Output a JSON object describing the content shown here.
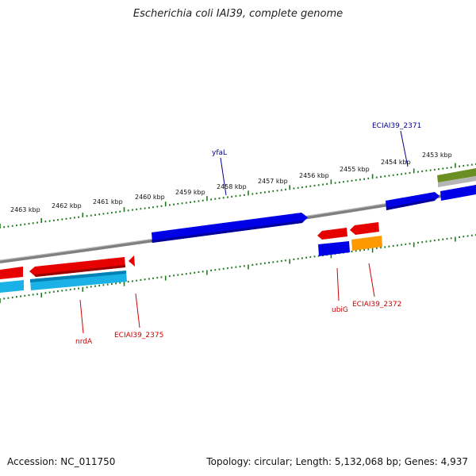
{
  "title": "Escherichia coli IAI39, complete genome",
  "footer": {
    "accession": "Accession: NC_011750",
    "summary": "Topology: circular; Length: 5,132,068 bp; Genes: 4,937"
  },
  "colors": {
    "background": "#ffffff",
    "backbone": "#808080",
    "tick": "#1f7a1f",
    "forward_gene": "#0000e6",
    "reverse_gene": "#e60000",
    "forward_label": "#00008b",
    "reverse_label": "#cc0000",
    "cyan_feature": "#1ab2e6",
    "orange_feature": "#ff9900",
    "olive_feature": "#6b8e23"
  },
  "scale_labels": [
    "2463 kbp",
    "2462 kbp",
    "2461 kbp",
    "2460 kbp",
    "2459 kbp",
    "2458 kbp",
    "2457 kbp",
    "2456 kbp",
    "2455 kbp",
    "2454 kbp",
    "2453 kbp"
  ],
  "gene_labels": {
    "ECIAI39_2371": "ECIAI39_2371",
    "yfaL": "yfaL",
    "ubiG": "ubiG",
    "ECIAI39_2372": "ECIAI39_2372",
    "nrdA": "nrdA",
    "ECIAI39_2375": "ECIAI39_2375"
  }
}
